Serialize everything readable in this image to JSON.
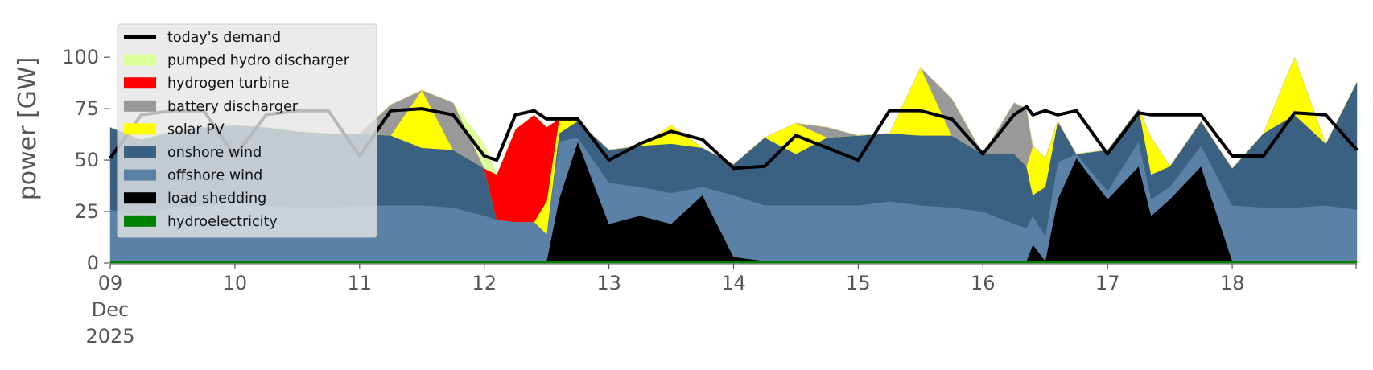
{
  "chart_data": {
    "type": "area",
    "stacked": true,
    "ylabel": "power [GW]",
    "xlabel": "",
    "xlim": [
      9,
      19
    ],
    "ylim": [
      0,
      120
    ],
    "xticks": [
      {
        "x": 9,
        "label": "09",
        "label2": "Dec",
        "label3": "2025"
      },
      {
        "x": 10,
        "label": "10"
      },
      {
        "x": 11,
        "label": "11"
      },
      {
        "x": 12,
        "label": "12"
      },
      {
        "x": 13,
        "label": "13"
      },
      {
        "x": 14,
        "label": "14"
      },
      {
        "x": 15,
        "label": "15"
      },
      {
        "x": 16,
        "label": "16"
      },
      {
        "x": 17,
        "label": "17"
      },
      {
        "x": 18,
        "label": "18"
      }
    ],
    "yticks": [
      {
        "y": 0,
        "label": "0"
      },
      {
        "y": 25,
        "label": "25"
      },
      {
        "y": 50,
        "label": "50"
      },
      {
        "y": 75,
        "label": "75"
      },
      {
        "y": 100,
        "label": "100"
      }
    ],
    "grid": false,
    "legend_position": "top-left",
    "x": [
      9.0,
      9.25,
      9.5,
      9.75,
      10.0,
      10.25,
      10.5,
      10.75,
      11.0,
      11.25,
      11.5,
      11.75,
      12.0,
      12.1,
      12.25,
      12.4,
      12.5,
      12.6,
      12.75,
      13.0,
      13.25,
      13.5,
      13.75,
      14.0,
      14.25,
      14.5,
      14.75,
      15.0,
      15.25,
      15.5,
      15.75,
      16.0,
      16.25,
      16.35,
      16.4,
      16.5,
      16.6,
      16.75,
      17.0,
      17.25,
      17.35,
      17.5,
      17.75,
      18.0,
      18.25,
      18.5,
      18.75,
      19.0
    ],
    "series": [
      {
        "name": "hydroelectricity",
        "color": "#008000",
        "values": [
          1,
          1,
          1,
          1,
          1,
          1,
          1,
          1,
          1,
          1,
          1,
          1,
          1,
          1,
          1,
          1,
          1,
          1,
          1,
          1,
          1,
          1,
          1,
          1,
          1,
          1,
          1,
          1,
          1,
          1,
          1,
          1,
          1,
          1,
          1,
          1,
          1,
          1,
          1,
          1,
          1,
          1,
          1,
          1,
          1,
          1,
          1,
          1
        ]
      },
      {
        "name": "load shedding",
        "color": "#000000",
        "values": [
          0,
          0,
          0,
          0,
          0,
          0,
          0,
          0,
          0,
          0,
          0,
          0,
          0,
          0,
          0,
          0,
          0,
          30,
          58,
          18,
          22,
          18,
          32,
          2,
          0,
          0,
          0,
          0,
          0,
          0,
          0,
          0,
          0,
          0,
          8,
          0,
          30,
          50,
          30,
          46,
          22,
          30,
          46,
          0,
          0,
          0,
          0,
          0
        ]
      },
      {
        "name": "offshore wind",
        "color": "#5b82a6",
        "values": [
          25,
          22,
          26,
          27,
          28,
          27,
          26,
          26,
          27,
          27,
          27,
          26,
          22,
          20,
          19,
          19,
          13,
          28,
          2,
          20,
          14,
          15,
          4,
          30,
          27,
          27,
          27,
          27,
          29,
          27,
          26,
          24,
          18,
          16,
          14,
          12,
          18,
          2,
          4,
          12,
          8,
          6,
          10,
          27,
          26,
          26,
          27,
          25
        ]
      },
      {
        "name": "onshore wind",
        "color": "#3b6182",
        "values": [
          40,
          37,
          37,
          38,
          38,
          38,
          37,
          36,
          35,
          34,
          28,
          28,
          23,
          0,
          0,
          0,
          0,
          4,
          8,
          16,
          20,
          24,
          19,
          15,
          33,
          25,
          33,
          34,
          33,
          34,
          35,
          28,
          34,
          30,
          10,
          24,
          20,
          0,
          20,
          16,
          12,
          10,
          12,
          18,
          36,
          45,
          30,
          62
        ]
      },
      {
        "name": "solar PV",
        "color": "#ffff00",
        "values": [
          0,
          0,
          0,
          0,
          0,
          0,
          0,
          0,
          0,
          0,
          28,
          0,
          0,
          0,
          0,
          0,
          16,
          7,
          0,
          0,
          0,
          9,
          0,
          0,
          0,
          15,
          0,
          0,
          0,
          33,
          0,
          0,
          0,
          0,
          24,
          14,
          0,
          0,
          0,
          0,
          18,
          0,
          0,
          0,
          0,
          28,
          0,
          0
        ]
      },
      {
        "name": "battery discharger",
        "color": "#999999",
        "values": [
          0,
          0,
          0,
          0,
          0,
          0,
          0,
          0,
          0,
          15,
          0,
          23,
          0,
          0,
          0,
          0,
          0,
          0,
          0,
          0,
          0,
          0,
          0,
          0,
          0,
          0,
          5,
          0,
          0,
          0,
          18,
          0,
          25,
          28,
          0,
          0,
          0,
          0,
          0,
          0,
          0,
          0,
          0,
          0,
          0,
          0,
          0,
          0
        ]
      },
      {
        "name": "hydrogen turbine",
        "color": "#ff0000",
        "values": [
          0,
          0,
          0,
          0,
          0,
          0,
          0,
          0,
          0,
          0,
          0,
          0,
          0,
          22,
          45,
          52,
          36,
          0,
          0,
          0,
          0,
          0,
          0,
          0,
          0,
          0,
          0,
          0,
          0,
          0,
          0,
          0,
          0,
          0,
          0,
          0,
          0,
          0,
          0,
          0,
          0,
          0,
          0,
          0,
          0,
          0,
          0,
          0
        ]
      },
      {
        "name": "pumped hydro discharger",
        "color": "#ddff99",
        "values": [
          0,
          0,
          0,
          0,
          0,
          0,
          0,
          0,
          0,
          0,
          0,
          0,
          12,
          0,
          0,
          0,
          0,
          0,
          0,
          0,
          0,
          0,
          0,
          0,
          0,
          0,
          0,
          0,
          0,
          0,
          0,
          0,
          0,
          0,
          0,
          0,
          0,
          0,
          0,
          0,
          0,
          0,
          0,
          0,
          0,
          0,
          0,
          0
        ]
      }
    ],
    "line": {
      "name": "today's demand",
      "color": "#000000",
      "x": [
        9.0,
        9.25,
        9.5,
        9.75,
        10.0,
        10.25,
        10.5,
        10.75,
        11.0,
        11.25,
        11.5,
        11.75,
        12.0,
        12.1,
        12.25,
        12.4,
        12.5,
        12.6,
        12.75,
        13.0,
        13.25,
        13.5,
        13.75,
        14.0,
        14.25,
        14.5,
        14.75,
        15.0,
        15.25,
        15.5,
        15.75,
        16.0,
        16.25,
        16.35,
        16.4,
        16.5,
        16.6,
        16.75,
        17.0,
        17.25,
        17.35,
        17.5,
        17.75,
        18.0,
        18.25,
        18.5,
        18.75,
        19.0
      ],
      "values": [
        51,
        72,
        74,
        74,
        52,
        72,
        74,
        74,
        52,
        74,
        75,
        72,
        52,
        50,
        72,
        74,
        70,
        70,
        70,
        50,
        58,
        64,
        60,
        46,
        47,
        62,
        56,
        50,
        74,
        74,
        70,
        53,
        72,
        76,
        72,
        74,
        72,
        74,
        53,
        73,
        72,
        72,
        72,
        52,
        52,
        73,
        72,
        55
      ]
    },
    "legend": [
      "today's demand",
      "pumped hydro discharger",
      "hydrogen turbine",
      "battery discharger",
      "solar PV",
      "onshore wind",
      "offshore wind",
      "load shedding",
      "hydroelectricity"
    ]
  }
}
